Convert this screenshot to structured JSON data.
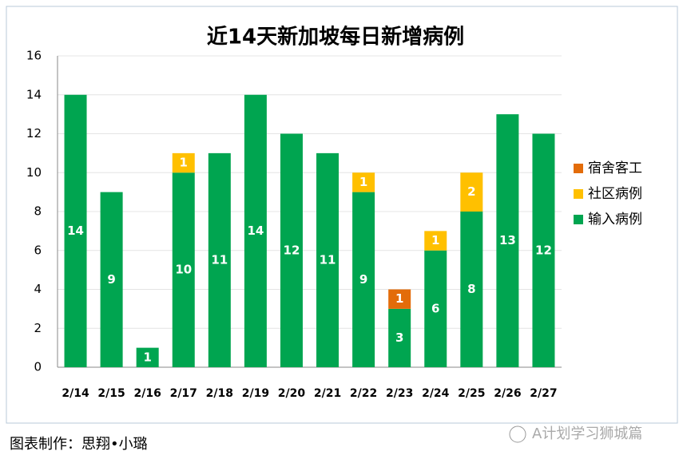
{
  "chart_data": {
    "type": "stacked-bar",
    "title": "近14天新加坡每日新增病例",
    "categories": [
      "2/14",
      "2/15",
      "2/16",
      "2/17",
      "2/18",
      "2/19",
      "2/20",
      "2/21",
      "2/22",
      "2/23",
      "2/24",
      "2/25",
      "2/26",
      "2/27"
    ],
    "series": [
      {
        "name": "输入病例",
        "color": "#00a550",
        "values": [
          14,
          9,
          1,
          10,
          11,
          14,
          12,
          11,
          9,
          3,
          6,
          8,
          13,
          12
        ]
      },
      {
        "name": "社区病例",
        "color": "#ffc000",
        "values": [
          0,
          0,
          0,
          1,
          0,
          0,
          0,
          0,
          1,
          0,
          1,
          2,
          0,
          0
        ]
      },
      {
        "name": "宿舍客工",
        "color": "#e36c0a",
        "values": [
          0,
          0,
          0,
          0,
          0,
          0,
          0,
          0,
          0,
          1,
          0,
          0,
          0,
          0
        ]
      }
    ],
    "ylim": [
      0,
      16
    ],
    "yticks": [
      0,
      2,
      4,
      6,
      8,
      10,
      12,
      14,
      16
    ],
    "grid": true,
    "legend": "right"
  },
  "caption": "图表制作：思翔•小璐",
  "watermark": "A计划学习狮城篇"
}
